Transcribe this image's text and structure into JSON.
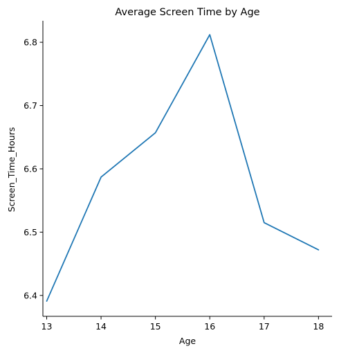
{
  "chart_data": {
    "type": "line",
    "title": "Average Screen Time by Age",
    "xlabel": "Age",
    "ylabel": "Screen_Time_Hours",
    "x": [
      13,
      14,
      15,
      16,
      17,
      18
    ],
    "series": [
      {
        "color": "#1f77b4",
        "values": [
          6.391,
          6.587,
          6.657,
          6.812,
          6.515,
          6.472
        ]
      }
    ],
    "xlim": [
      12.93,
      18.25
    ],
    "ylim": [
      6.367,
      6.834
    ],
    "xticks": [
      13,
      14,
      15,
      16,
      17,
      18
    ],
    "yticks": [
      6.4,
      6.5,
      6.6,
      6.7,
      6.8
    ],
    "ytick_labels": [
      "6.4",
      "6.5",
      "6.6",
      "6.7",
      "6.8"
    ],
    "grid": false,
    "spines": [
      "left",
      "bottom"
    ]
  }
}
